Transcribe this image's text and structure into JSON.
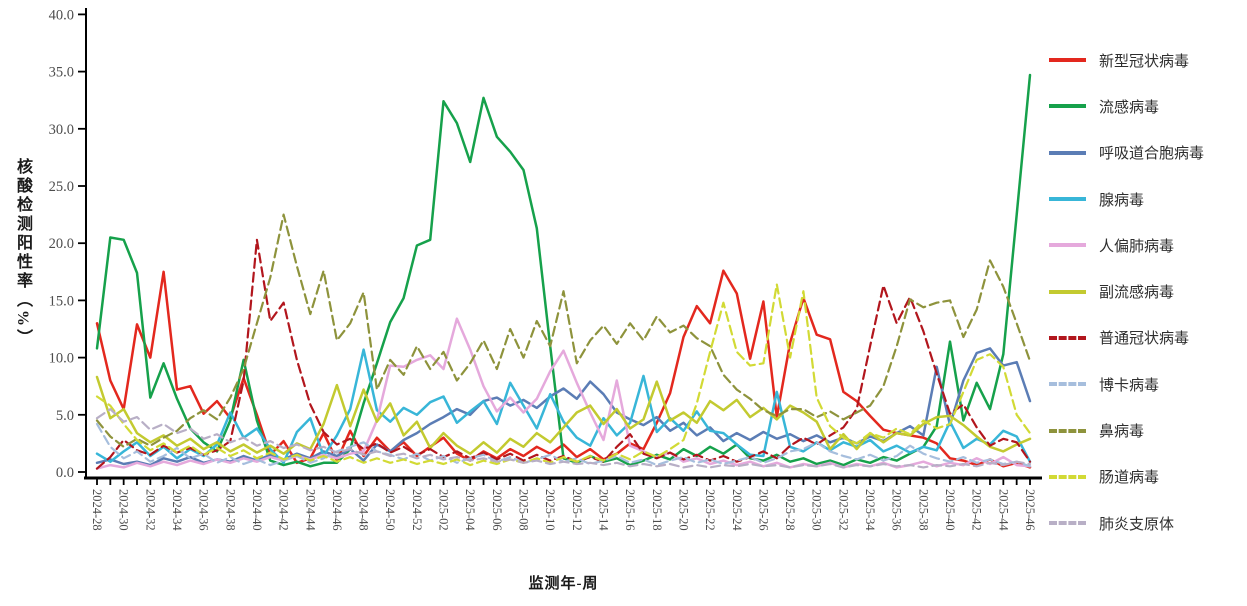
{
  "axis": {
    "line_color": "#000000",
    "tick_label_color": "#4d4d4d",
    "x_tick_label_rotation_deg": 90
  },
  "chart_data": {
    "type": "line",
    "title": "",
    "xlabel": "监测年-周",
    "ylabel": "核酸检测阳性率（%）",
    "ylim": [
      0,
      40
    ],
    "ytick_step": 5,
    "ytick_labels": [
      "0.0",
      "5.0",
      "10.0",
      "15.0",
      "20.0",
      "25.0",
      "30.0",
      "35.0",
      "40.0"
    ],
    "x_tick_label_every": 2,
    "grid": false,
    "legend_position": "right",
    "categories": [
      "2024-28",
      "2024-29",
      "2024-30",
      "2024-31",
      "2024-32",
      "2024-33",
      "2024-34",
      "2024-35",
      "2024-36",
      "2024-37",
      "2024-38",
      "2024-39",
      "2024-40",
      "2024-41",
      "2024-42",
      "2024-43",
      "2024-44",
      "2024-45",
      "2024-46",
      "2024-47",
      "2024-48",
      "2024-49",
      "2024-50",
      "2024-51",
      "2024-52",
      "2025-01",
      "2025-02",
      "2025-03",
      "2025-04",
      "2025-05",
      "2025-06",
      "2025-07",
      "2025-08",
      "2025-09",
      "2025-10",
      "2025-11",
      "2025-12",
      "2025-13",
      "2025-14",
      "2025-15",
      "2025-16",
      "2025-17",
      "2025-18",
      "2025-19",
      "2025-20",
      "2025-21",
      "2025-22",
      "2025-23",
      "2025-24",
      "2025-25",
      "2025-26",
      "2025-27",
      "2025-28",
      "2025-29",
      "2025-30",
      "2025-31",
      "2025-32",
      "2025-33",
      "2025-34",
      "2025-35",
      "2025-36",
      "2025-37",
      "2025-38",
      "2025-39",
      "2025-40",
      "2025-41",
      "2025-42",
      "2025-43",
      "2025-44",
      "2025-45",
      "2025-46"
    ],
    "series": [
      {
        "name": "新型冠状病毒",
        "color": "#e3281e",
        "dashed": false,
        "values": [
          13.0,
          8.0,
          5.5,
          12.9,
          10.0,
          17.5,
          7.2,
          7.5,
          5.1,
          6.2,
          4.7,
          8.2,
          5.0,
          1.5,
          2.7,
          0.8,
          1.2,
          3.4,
          1.0,
          3.6,
          1.4,
          3.0,
          1.8,
          2.6,
          1.4,
          2.2,
          3.0,
          1.6,
          1.0,
          1.8,
          1.2,
          2.0,
          1.4,
          2.2,
          1.6,
          2.4,
          1.3,
          2.0,
          1.1,
          1.6,
          2.5,
          2.0,
          4.3,
          6.9,
          11.8,
          14.5,
          13.0,
          17.6,
          15.6,
          9.9,
          14.9,
          4.8,
          11.3,
          15.2,
          12.0,
          11.6,
          7.0,
          6.2,
          4.9,
          3.7,
          3.4,
          3.2,
          3.0,
          2.5,
          1.2,
          1.0,
          0.6,
          1.1,
          0.5,
          0.8,
          0.4
        ]
      },
      {
        "name": "流感病毒",
        "color": "#16a14b",
        "dashed": false,
        "values": [
          10.8,
          20.5,
          20.3,
          17.4,
          6.5,
          9.5,
          6.4,
          3.8,
          2.6,
          1.8,
          4.5,
          9.8,
          4.5,
          1.0,
          0.6,
          0.9,
          0.5,
          0.8,
          0.8,
          2.0,
          6.0,
          9.5,
          13.1,
          15.2,
          19.8,
          20.3,
          32.4,
          30.5,
          27.1,
          32.7,
          29.3,
          28.0,
          26.4,
          21.3,
          11.0,
          1.2,
          0.8,
          1.4,
          0.9,
          1.2,
          0.6,
          1.0,
          1.5,
          1.1,
          2.0,
          1.4,
          2.2,
          1.6,
          2.4,
          1.2,
          1.0,
          1.5,
          0.9,
          1.2,
          0.7,
          1.0,
          0.6,
          1.1,
          0.8,
          1.3,
          1.0,
          1.6,
          2.2,
          4.0,
          11.4,
          4.5,
          7.8,
          5.5,
          10.3,
          22.5,
          34.7
        ]
      },
      {
        "name": "呼吸道合胞病毒",
        "color": "#5b7db5",
        "dashed": false,
        "values": [
          0.8,
          1.1,
          0.7,
          0.9,
          0.6,
          1.2,
          0.9,
          1.3,
          0.8,
          1.1,
          0.9,
          1.4,
          1.0,
          1.5,
          1.1,
          1.6,
          1.2,
          1.8,
          1.4,
          2.0,
          1.0,
          2.4,
          1.8,
          2.8,
          3.4,
          4.2,
          4.8,
          5.5,
          5.0,
          6.2,
          6.5,
          5.8,
          6.3,
          5.6,
          6.6,
          7.3,
          6.4,
          7.9,
          6.8,
          5.2,
          4.6,
          4.1,
          4.8,
          3.6,
          4.3,
          3.2,
          3.9,
          2.7,
          3.4,
          2.8,
          3.5,
          2.9,
          3.3,
          2.7,
          3.2,
          2.6,
          3.0,
          2.5,
          3.1,
          2.7,
          3.4,
          4.0,
          3.2,
          9.2,
          4.1,
          8.0,
          10.4,
          10.8,
          9.3,
          9.6,
          6.2
        ]
      },
      {
        "name": "腺病毒",
        "color": "#38b6d8",
        "dashed": false,
        "values": [
          1.6,
          0.9,
          1.8,
          2.6,
          1.4,
          2.2,
          1.2,
          2.0,
          1.4,
          2.4,
          5.2,
          3.0,
          3.8,
          2.0,
          0.8,
          3.5,
          4.7,
          1.4,
          3.2,
          5.5,
          10.7,
          5.4,
          4.4,
          5.6,
          5.0,
          6.1,
          6.6,
          4.3,
          5.3,
          6.2,
          4.2,
          7.8,
          5.8,
          3.8,
          6.8,
          4.4,
          3.0,
          2.3,
          4.7,
          3.2,
          4.3,
          8.4,
          3.5,
          4.7,
          3.6,
          5.3,
          3.6,
          3.4,
          2.4,
          1.5,
          1.4,
          7.0,
          2.2,
          1.8,
          2.6,
          1.9,
          2.6,
          2.2,
          2.8,
          1.8,
          2.3,
          1.7,
          2.2,
          1.9,
          4.4,
          2.1,
          2.9,
          2.4,
          3.6,
          3.1,
          0.9
        ]
      },
      {
        "name": "人偏肺病毒",
        "color": "#e5a9dc",
        "dashed": false,
        "values": [
          0.3,
          0.6,
          0.4,
          0.8,
          0.5,
          0.9,
          0.6,
          1.0,
          0.7,
          1.1,
          0.8,
          1.2,
          0.9,
          1.3,
          1.0,
          1.4,
          1.1,
          1.5,
          1.2,
          1.6,
          1.8,
          4.5,
          9.3,
          9.2,
          9.8,
          10.2,
          9.0,
          13.4,
          10.7,
          7.5,
          5.3,
          6.5,
          5.2,
          6.4,
          8.8,
          10.6,
          7.8,
          5.2,
          2.8,
          8.0,
          2.3,
          1.8,
          1.3,
          1.7,
          0.9,
          1.2,
          0.7,
          1.0,
          0.6,
          0.9,
          0.5,
          0.8,
          0.4,
          0.7,
          0.5,
          0.8,
          0.4,
          0.7,
          0.5,
          0.8,
          0.4,
          0.6,
          0.9,
          0.5,
          0.8,
          0.6,
          1.2,
          0.7,
          1.3,
          0.6,
          0.5
        ]
      },
      {
        "name": "副流感病毒",
        "color": "#c3ca30",
        "dashed": false,
        "values": [
          8.3,
          4.7,
          5.5,
          3.4,
          2.6,
          3.2,
          2.3,
          2.9,
          2.0,
          2.6,
          1.8,
          2.4,
          1.7,
          2.3,
          1.6,
          2.5,
          2.0,
          4.2,
          7.6,
          4.0,
          7.2,
          4.4,
          6.0,
          3.2,
          4.4,
          2.1,
          3.4,
          2.3,
          1.6,
          2.6,
          1.7,
          2.9,
          2.2,
          3.4,
          2.6,
          3.9,
          5.2,
          5.8,
          4.2,
          5.5,
          3.8,
          4.6,
          7.9,
          4.5,
          5.2,
          4.3,
          6.2,
          5.4,
          6.3,
          4.8,
          5.6,
          4.6,
          5.8,
          5.2,
          4.4,
          2.0,
          3.3,
          2.0,
          3.4,
          2.6,
          3.4,
          3.2,
          4.2,
          4.8,
          4.9,
          4.1,
          3.1,
          2.2,
          1.8,
          2.4,
          2.9
        ]
      },
      {
        "name": "普通冠状病毒",
        "color": "#b2161d",
        "dashed": true,
        "values": [
          0.3,
          1.3,
          2.8,
          1.9,
          1.5,
          2.3,
          1.7,
          2.1,
          1.5,
          1.9,
          2.7,
          8.0,
          20.3,
          13.2,
          14.8,
          9.8,
          5.9,
          3.5,
          2.4,
          2.9,
          2.0,
          2.5,
          1.7,
          2.2,
          1.5,
          2.0,
          1.3,
          1.8,
          1.2,
          1.7,
          1.1,
          1.6,
          1.0,
          1.5,
          1.0,
          1.4,
          0.9,
          1.3,
          0.9,
          2.2,
          3.3,
          1.6,
          1.2,
          1.7,
          1.1,
          1.5,
          1.0,
          1.4,
          0.9,
          1.3,
          1.8,
          1.2,
          2.3,
          3.0,
          2.4,
          3.2,
          3.9,
          5.5,
          11.0,
          16.3,
          13.0,
          15.3,
          12.3,
          8.6,
          5.1,
          5.9,
          3.9,
          2.3,
          2.9,
          2.6,
          0.9
        ]
      },
      {
        "name": "博卡病毒",
        "color": "#a6bedd",
        "dashed": true,
        "values": [
          4.2,
          2.2,
          1.2,
          1.8,
          0.9,
          1.4,
          2.1,
          1.2,
          1.6,
          0.8,
          1.3,
          0.7,
          1.1,
          0.6,
          1.0,
          1.4,
          0.8,
          1.2,
          1.8,
          2.2,
          2.6,
          1.8,
          1.5,
          1.1,
          1.6,
          1.0,
          1.4,
          0.8,
          1.2,
          1.5,
          0.9,
          1.3,
          0.8,
          1.1,
          1.5,
          0.9,
          1.2,
          0.7,
          1.0,
          1.4,
          0.8,
          1.1,
          0.6,
          1.0,
          1.3,
          0.8,
          1.1,
          0.7,
          1.0,
          1.3,
          0.8,
          1.2,
          1.8,
          2.0,
          2.6,
          1.8,
          1.4,
          1.1,
          1.5,
          1.0,
          1.4,
          2.3,
          1.6,
          1.2,
          0.9,
          1.3,
          0.8,
          1.1,
          0.7,
          0.9,
          0.5
        ]
      },
      {
        "name": "鼻病毒",
        "color": "#8e933c",
        "dashed": true,
        "values": [
          4.5,
          3.1,
          2.2,
          2.9,
          2.3,
          3.0,
          3.6,
          4.7,
          5.4,
          4.6,
          6.5,
          9.0,
          13.0,
          17.0,
          22.5,
          18.0,
          13.8,
          17.6,
          11.5,
          13.0,
          15.7,
          7.2,
          9.8,
          8.5,
          11.0,
          9.0,
          10.5,
          8.0,
          9.5,
          11.5,
          9.0,
          12.5,
          10.0,
          13.2,
          11.0,
          15.8,
          9.5,
          11.5,
          12.8,
          11.2,
          13.0,
          11.5,
          13.6,
          12.2,
          12.8,
          11.7,
          11.0,
          8.5,
          7.2,
          6.4,
          5.4,
          4.9,
          5.5,
          5.5,
          4.8,
          5.3,
          4.6,
          5.2,
          5.8,
          7.5,
          11.0,
          15.1,
          14.4,
          14.8,
          15.0,
          11.8,
          14.2,
          18.5,
          16.2,
          13.0,
          9.7
        ]
      },
      {
        "name": "肠道病毒",
        "color": "#d2da35",
        "dashed": true,
        "values": [
          6.6,
          5.8,
          4.2,
          2.8,
          1.9,
          2.5,
          1.7,
          2.3,
          1.5,
          2.1,
          1.4,
          1.9,
          1.2,
          1.7,
          1.1,
          1.5,
          1.0,
          1.4,
          0.9,
          1.3,
          0.8,
          1.2,
          0.8,
          1.1,
          0.7,
          1.0,
          0.7,
          1.1,
          0.6,
          1.0,
          0.7,
          1.1,
          0.8,
          1.2,
          0.8,
          1.3,
          0.9,
          1.4,
          1.0,
          1.6,
          1.1,
          1.8,
          1.3,
          2.0,
          2.8,
          6.0,
          10.5,
          14.8,
          10.5,
          9.3,
          9.5,
          16.4,
          10.0,
          15.8,
          6.5,
          4.0,
          3.0,
          2.5,
          3.4,
          3.0,
          3.8,
          3.3,
          4.5,
          3.8,
          4.2,
          7.0,
          9.8,
          10.3,
          9.2,
          5.0,
          3.4
        ]
      },
      {
        "name": "肺炎支原体",
        "color": "#b8afc6",
        "dashed": true,
        "values": [
          4.7,
          5.5,
          4.4,
          4.8,
          3.7,
          4.2,
          3.4,
          3.8,
          2.9,
          3.3,
          2.6,
          3.0,
          2.3,
          2.7,
          2.1,
          2.4,
          1.9,
          2.2,
          1.7,
          2.0,
          1.5,
          1.8,
          1.4,
          1.6,
          1.2,
          1.5,
          1.1,
          1.3,
          1.0,
          1.2,
          0.9,
          1.1,
          0.8,
          1.0,
          0.7,
          0.9,
          0.7,
          0.8,
          0.6,
          0.8,
          0.5,
          0.7,
          0.5,
          0.7,
          0.4,
          0.6,
          0.4,
          0.6,
          0.5,
          0.7,
          0.5,
          0.6,
          0.4,
          0.6,
          0.5,
          0.7,
          0.4,
          0.6,
          0.5,
          0.7,
          0.5,
          0.6,
          0.4,
          0.6,
          0.5,
          0.7,
          0.5,
          0.8,
          0.6,
          0.9,
          0.7
        ]
      }
    ]
  }
}
